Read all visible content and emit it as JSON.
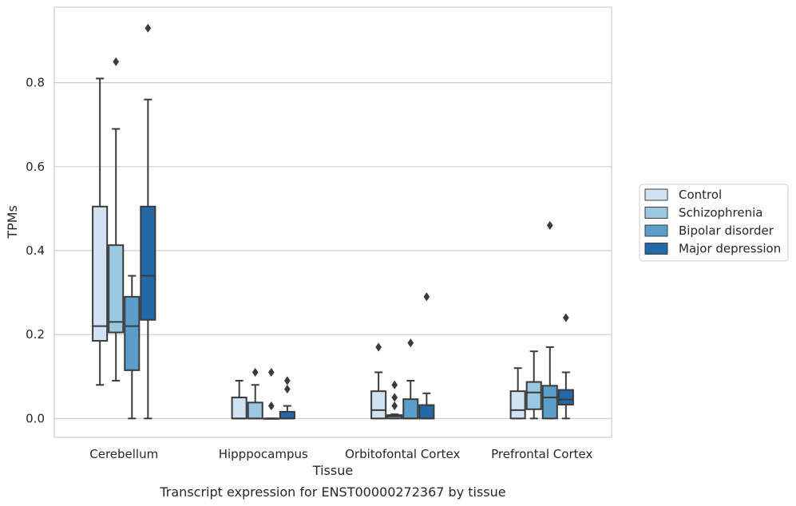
{
  "chart_data": {
    "type": "box",
    "caption": "Transcript expression for ENST00000272367 by tissue",
    "xlabel": "Tissue",
    "ylabel": "TPMs",
    "ylim": [
      -0.045,
      0.98
    ],
    "yticks": [
      0.0,
      0.2,
      0.4,
      0.6,
      0.8
    ],
    "ytick_labels": [
      "0.0",
      "0.2",
      "0.4",
      "0.6",
      "0.8"
    ],
    "grid": "horizontal",
    "legend_position": "right",
    "categories": [
      "Cerebellum",
      "Hipppocampus",
      "Orbitofontal Cortex",
      "Prefrontal Cortex"
    ],
    "series": [
      {
        "name": "Control",
        "color": "#d1e2f2",
        "boxes": [
          {
            "whisker_low": 0.08,
            "q1": 0.185,
            "median": 0.22,
            "q3": 0.505,
            "whisker_high": 0.81,
            "outliers": []
          },
          {
            "whisker_low": 0.0,
            "q1": 0.0,
            "median": 0.0,
            "q3": 0.05,
            "whisker_high": 0.09,
            "outliers": []
          },
          {
            "whisker_low": 0.0,
            "q1": 0.0,
            "median": 0.02,
            "q3": 0.065,
            "whisker_high": 0.11,
            "outliers": [
              0.17
            ]
          },
          {
            "whisker_low": 0.0,
            "q1": 0.0,
            "median": 0.02,
            "q3": 0.065,
            "whisker_high": 0.12,
            "outliers": []
          }
        ]
      },
      {
        "name": "Schizophrenia",
        "color": "#9ac8e0",
        "boxes": [
          {
            "whisker_low": 0.09,
            "q1": 0.205,
            "median": 0.23,
            "q3": 0.413,
            "whisker_high": 0.69,
            "outliers": [
              0.85
            ]
          },
          {
            "whisker_low": 0.0,
            "q1": 0.0,
            "median": 0.0,
            "q3": 0.038,
            "whisker_high": 0.08,
            "outliers": [
              0.11
            ]
          },
          {
            "whisker_low": 0.0,
            "q1": 0.0,
            "median": 0.005,
            "q3": 0.008,
            "whisker_high": 0.01,
            "outliers": [
              0.03,
              0.05,
              0.08
            ]
          },
          {
            "whisker_low": 0.0,
            "q1": 0.022,
            "median": 0.062,
            "q3": 0.087,
            "whisker_high": 0.16,
            "outliers": []
          }
        ]
      },
      {
        "name": "Bipolar disorder",
        "color": "#5a9ec9",
        "boxes": [
          {
            "whisker_low": 0.0,
            "q1": 0.115,
            "median": 0.22,
            "q3": 0.29,
            "whisker_high": 0.34,
            "outliers": []
          },
          {
            "whisker_low": 0.0,
            "q1": 0.0,
            "median": 0.0,
            "q3": 0.0,
            "whisker_high": 0.0,
            "outliers": [
              0.03,
              0.11
            ]
          },
          {
            "whisker_low": 0.0,
            "q1": 0.0,
            "median": 0.0,
            "q3": 0.046,
            "whisker_high": 0.09,
            "outliers": [
              0.18
            ]
          },
          {
            "whisker_low": 0.0,
            "q1": 0.0,
            "median": 0.05,
            "q3": 0.078,
            "whisker_high": 0.17,
            "outliers": [
              0.46
            ]
          }
        ]
      },
      {
        "name": "Major depression",
        "color": "#2369a8",
        "boxes": [
          {
            "whisker_low": 0.0,
            "q1": 0.235,
            "median": 0.34,
            "q3": 0.505,
            "whisker_high": 0.76,
            "outliers": [
              0.93
            ]
          },
          {
            "whisker_low": 0.0,
            "q1": 0.0,
            "median": 0.0,
            "q3": 0.016,
            "whisker_high": 0.03,
            "outliers": [
              0.07,
              0.09
            ]
          },
          {
            "whisker_low": 0.0,
            "q1": 0.0,
            "median": 0.0,
            "q3": 0.032,
            "whisker_high": 0.06,
            "outliers": [
              0.29
            ]
          },
          {
            "whisker_low": 0.0,
            "q1": 0.033,
            "median": 0.045,
            "q3": 0.068,
            "whisker_high": 0.11,
            "outliers": [
              0.24
            ]
          }
        ]
      }
    ]
  }
}
